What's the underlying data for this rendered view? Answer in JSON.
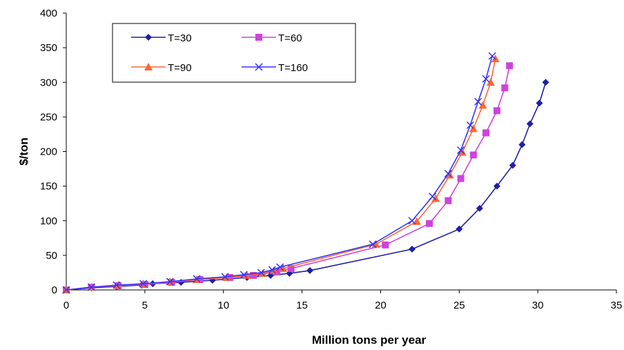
{
  "chart_data": {
    "type": "line",
    "title": "",
    "xlabel": "Million tons per year",
    "ylabel": "$/ton",
    "xlim": [
      0,
      35
    ],
    "ylim": [
      0,
      400
    ],
    "x_ticks": [
      0,
      5,
      10,
      15,
      20,
      25,
      30,
      35
    ],
    "y_ticks": [
      0,
      50,
      100,
      150,
      200,
      250,
      300,
      350,
      400
    ],
    "grid": false,
    "legend_position": "top-left",
    "series": [
      {
        "name": "T=30",
        "color": "#1f1fa8",
        "marker": "diamond",
        "points": [
          [
            0,
            0
          ],
          [
            1.6,
            3
          ],
          [
            3.2,
            5
          ],
          [
            4.8,
            7
          ],
          [
            5.5,
            9
          ],
          [
            7.3,
            11
          ],
          [
            9.3,
            14
          ],
          [
            11.5,
            18
          ],
          [
            13,
            21
          ],
          [
            14.2,
            24
          ],
          [
            15.5,
            28
          ],
          [
            22,
            59
          ],
          [
            25,
            88
          ],
          [
            26.3,
            118
          ],
          [
            27.4,
            150
          ],
          [
            28.4,
            180
          ],
          [
            29,
            210
          ],
          [
            29.5,
            240
          ],
          [
            30.1,
            270
          ],
          [
            30.5,
            300
          ]
        ]
      },
      {
        "name": "T=60",
        "color": "#cc44dd",
        "marker": "square",
        "points": [
          [
            0,
            0
          ],
          [
            1.6,
            4
          ],
          [
            3.3,
            6
          ],
          [
            5,
            8
          ],
          [
            6.7,
            11
          ],
          [
            8.5,
            15
          ],
          [
            10.4,
            18
          ],
          [
            11.9,
            21
          ],
          [
            13.4,
            26
          ],
          [
            14.3,
            31
          ],
          [
            20.3,
            65
          ],
          [
            23.1,
            96
          ],
          [
            24.3,
            129
          ],
          [
            25.1,
            161
          ],
          [
            25.9,
            195
          ],
          [
            26.7,
            227
          ],
          [
            27.4,
            259
          ],
          [
            27.9,
            292
          ],
          [
            28.2,
            324
          ]
        ]
      },
      {
        "name": "T=90",
        "color": "#ff6633",
        "marker": "triangle",
        "points": [
          [
            0,
            0
          ],
          [
            1.6,
            4
          ],
          [
            3.3,
            7
          ],
          [
            4.9,
            9
          ],
          [
            6.6,
            12
          ],
          [
            8.3,
            15
          ],
          [
            10.2,
            18
          ],
          [
            11.5,
            21
          ],
          [
            12.5,
            24
          ],
          [
            13.2,
            28
          ],
          [
            13.8,
            31
          ],
          [
            19.7,
            66
          ],
          [
            22.3,
            99
          ],
          [
            23.5,
            132
          ],
          [
            24.4,
            166
          ],
          [
            25.2,
            199
          ],
          [
            25.9,
            233
          ],
          [
            26.5,
            267
          ],
          [
            27,
            300
          ],
          [
            27.3,
            334
          ]
        ]
      },
      {
        "name": "T=160",
        "color": "#3333ff",
        "marker": "x",
        "points": [
          [
            0,
            0
          ],
          [
            1.6,
            4
          ],
          [
            3.2,
            7
          ],
          [
            4.9,
            9
          ],
          [
            6.6,
            12
          ],
          [
            8.3,
            16
          ],
          [
            10.1,
            19
          ],
          [
            11.3,
            22
          ],
          [
            12.4,
            25
          ],
          [
            13.1,
            29
          ],
          [
            13.6,
            33
          ],
          [
            19.5,
            66
          ],
          [
            22,
            100
          ],
          [
            23.3,
            135
          ],
          [
            24.3,
            168
          ],
          [
            25.1,
            202
          ],
          [
            25.7,
            238
          ],
          [
            26.2,
            272
          ],
          [
            26.7,
            305
          ],
          [
            27.1,
            338
          ]
        ]
      }
    ]
  }
}
